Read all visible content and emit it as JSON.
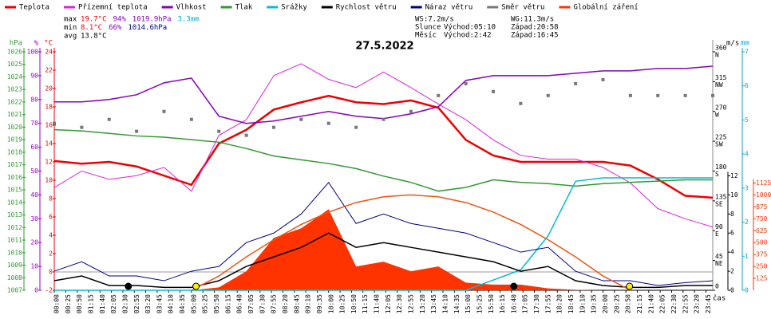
{
  "chart_data": {
    "type": "line",
    "title": "27.5.2022",
    "x_label": "čas",
    "x": [
      0,
      60,
      120,
      180,
      240,
      300,
      360,
      420,
      480,
      540,
      600,
      660,
      720,
      780,
      840,
      900,
      960,
      1020,
      1080,
      1140,
      1200,
      1260,
      1320,
      1380,
      1440
    ],
    "xlim": [
      0,
      1440
    ],
    "xticks": [
      {
        "value": 0,
        "label": "00:00"
      },
      {
        "value": 25,
        "label": "00:25"
      },
      {
        "value": 50,
        "label": "00:50"
      },
      {
        "value": 75,
        "label": "01:15"
      },
      {
        "value": 100,
        "label": "01:40"
      },
      {
        "value": 125,
        "label": "02:05"
      },
      {
        "value": 150,
        "label": "02:30"
      },
      {
        "value": 175,
        "label": "02:55"
      },
      {
        "value": 200,
        "label": "03:20"
      },
      {
        "value": 225,
        "label": "03:45"
      },
      {
        "value": 250,
        "label": "04:10"
      },
      {
        "value": 275,
        "label": "04:35"
      },
      {
        "value": 300,
        "label": "05:00"
      },
      {
        "value": 325,
        "label": "05:25"
      },
      {
        "value": 350,
        "label": "05:50"
      },
      {
        "value": 375,
        "label": "06:15"
      },
      {
        "value": 400,
        "label": "06:40"
      },
      {
        "value": 425,
        "label": "07:05"
      },
      {
        "value": 450,
        "label": "07:30"
      },
      {
        "value": 475,
        "label": "07:55"
      },
      {
        "value": 500,
        "label": "08:20"
      },
      {
        "value": 525,
        "label": "08:45"
      },
      {
        "value": 550,
        "label": "09:10"
      },
      {
        "value": 575,
        "label": "09:35"
      },
      {
        "value": 600,
        "label": "10:00"
      },
      {
        "value": 625,
        "label": "10:25"
      },
      {
        "value": 650,
        "label": "10:50"
      },
      {
        "value": 675,
        "label": "11:15"
      },
      {
        "value": 700,
        "label": "11:40"
      },
      {
        "value": 725,
        "label": "12:05"
      },
      {
        "value": 750,
        "label": "12:30"
      },
      {
        "value": 775,
        "label": "12:55"
      },
      {
        "value": 800,
        "label": "13:20"
      },
      {
        "value": 825,
        "label": "13:45"
      },
      {
        "value": 850,
        "label": "14:10"
      },
      {
        "value": 875,
        "label": "14:35"
      },
      {
        "value": 900,
        "label": "15:00"
      },
      {
        "value": 925,
        "label": "15:25"
      },
      {
        "value": 950,
        "label": "15:50"
      },
      {
        "value": 975,
        "label": "16:15"
      },
      {
        "value": 1000,
        "label": "16:40"
      },
      {
        "value": 1025,
        "label": "17:05"
      },
      {
        "value": 1050,
        "label": "17:30"
      },
      {
        "value": 1075,
        "label": "17:55"
      },
      {
        "value": 1100,
        "label": "18:20"
      },
      {
        "value": 1125,
        "label": "18:45"
      },
      {
        "value": 1150,
        "label": "19:10"
      },
      {
        "value": 1175,
        "label": "19:35"
      },
      {
        "value": 1200,
        "label": "20:00"
      },
      {
        "value": 1225,
        "label": "20:25"
      },
      {
        "value": 1250,
        "label": "20:50"
      },
      {
        "value": 1275,
        "label": "21:15"
      },
      {
        "value": 1300,
        "label": "21:40"
      },
      {
        "value": 1325,
        "label": "22:05"
      },
      {
        "value": 1350,
        "label": "22:30"
      },
      {
        "value": 1375,
        "label": "22:55"
      },
      {
        "value": 1400,
        "label": "23:20"
      },
      {
        "value": 1425,
        "label": "23:45"
      }
    ],
    "axes": {
      "hpa": {
        "label": "hPa",
        "color": "#339933",
        "lim": [
          1007,
          1026
        ],
        "ticks": [
          1007,
          1008,
          1009,
          1010,
          1011,
          1012,
          1013,
          1014,
          1015,
          1016,
          1017,
          1018,
          1019,
          1020,
          1021,
          1022,
          1023,
          1024,
          1025,
          1026
        ]
      },
      "pct": {
        "label": "%",
        "color": "#9900cc",
        "lim": [
          0,
          100
        ],
        "ticks": [
          0,
          10,
          20,
          30,
          40,
          50,
          60,
          70,
          80,
          90,
          100
        ]
      },
      "temp": {
        "label": "°C",
        "color": "#ee0000",
        "lim": [
          -2,
          24
        ],
        "ticks": [
          -2,
          0,
          2,
          4,
          6,
          8,
          10,
          12,
          14,
          16,
          18,
          20,
          22,
          24
        ]
      },
      "dir": {
        "color": "#000000",
        "lim": [
          0,
          360
        ],
        "ticks": [
          {
            "value": 0,
            "label": "0"
          },
          {
            "value": 45,
            "label": "45",
            "compass": "NE"
          },
          {
            "value": 90,
            "label": "90",
            "compass": "E"
          },
          {
            "value": 135,
            "label": "135",
            "compass": "SE"
          },
          {
            "value": 180,
            "label": "180",
            "compass": "S"
          },
          {
            "value": 225,
            "label": "225",
            "compass": "SW"
          },
          {
            "value": 270,
            "label": "270",
            "compass": "W"
          },
          {
            "value": 315,
            "label": "315",
            "compass": "NW"
          },
          {
            "value": 360,
            "label": "360",
            "compass": "N"
          }
        ]
      },
      "ms": {
        "label": "m/s",
        "color": "#000000",
        "lim": [
          0,
          25
        ],
        "ticks": [
          0,
          2,
          4,
          6,
          8,
          10,
          12
        ]
      },
      "mm": {
        "label": "mm",
        "color": "#00aacc",
        "lim": [
          0,
          7
        ],
        "ticks": [
          0,
          1,
          2,
          3,
          4,
          5,
          6,
          7
        ]
      },
      "wm2": {
        "color": "#ff3300",
        "lim": [
          0,
          2500
        ],
        "ticks": [
          125,
          250,
          375,
          500,
          625,
          750,
          875,
          1000,
          1125
        ]
      }
    },
    "series": [
      {
        "name": "Teplota",
        "color": "#ee0000",
        "axis": "temp",
        "kind": "line",
        "width": 2.5,
        "values": [
          12.1,
          11.8,
          12.0,
          11.5,
          10.5,
          9.5,
          14.0,
          15.5,
          17.7,
          18.5,
          19.2,
          18.5,
          18.3,
          18.7,
          17.9,
          14.4,
          12.7,
          12.0,
          12.0,
          12.0,
          12.0,
          11.6,
          10.1,
          8.3,
          8.1
        ]
      },
      {
        "name": "Přízemní teplota",
        "color": "#dd22dd",
        "axis": "temp",
        "kind": "line",
        "width": 1,
        "values": [
          9.2,
          11.0,
          10.1,
          10.5,
          11.4,
          8.8,
          14.9,
          16.6,
          21.4,
          22.7,
          21.0,
          20.1,
          21.8,
          20.1,
          18.3,
          16.6,
          14.4,
          12.7,
          12.3,
          12.3,
          11.4,
          9.7,
          6.9,
          5.8,
          4.9
        ]
      },
      {
        "name": "Vlhkost",
        "color": "#8800bb",
        "axis": "pct",
        "kind": "line",
        "width": 1.5,
        "values": [
          79,
          79,
          80,
          82,
          87,
          89,
          73,
          70,
          71,
          73,
          75,
          73,
          72,
          74,
          77,
          88,
          90,
          90,
          90,
          91,
          92,
          92,
          93,
          93,
          94
        ]
      },
      {
        "name": "Tlak",
        "color": "#339933",
        "axis": "hpa",
        "kind": "line",
        "width": 1.5,
        "values": [
          1019.8,
          1019.7,
          1019.5,
          1019.3,
          1019.2,
          1019.0,
          1018.8,
          1018.3,
          1017.7,
          1017.4,
          1017.1,
          1016.7,
          1016.1,
          1015.6,
          1014.9,
          1015.2,
          1015.8,
          1015.6,
          1015.5,
          1015.3,
          1015.5,
          1015.6,
          1015.7,
          1015.8,
          1015.8
        ]
      },
      {
        "name": "Srážky",
        "color": "#00bcd4",
        "axis": "mm",
        "kind": "line",
        "width": 1.5,
        "values": [
          0,
          0,
          0,
          0,
          0,
          0,
          0,
          0,
          0,
          0,
          0,
          0,
          0,
          0,
          0,
          0,
          0.3,
          0.6,
          1.6,
          3.2,
          3.3,
          3.3,
          3.3,
          3.3,
          3.3
        ]
      },
      {
        "name": "Rychlost větru",
        "color": "#000000",
        "axis": "ms",
        "kind": "line",
        "width": 1.5,
        "values": [
          1,
          1.5,
          0.5,
          0.5,
          0.3,
          0.3,
          1,
          2.5,
          3.5,
          4.5,
          6,
          4.5,
          5,
          4.5,
          4,
          3.5,
          3,
          2,
          2.5,
          1,
          0.5,
          0.3,
          0.3,
          0.5,
          0.5
        ]
      },
      {
        "name": "Náraz větru",
        "color": "#000080",
        "axis": "ms",
        "kind": "line",
        "width": 1,
        "values": [
          2,
          3,
          1.5,
          1.5,
          1,
          2,
          2.5,
          5,
          6,
          8,
          11.3,
          7,
          8,
          7,
          6.5,
          6,
          5,
          4,
          4.5,
          2,
          1,
          1,
          0.5,
          0.8,
          1
        ]
      },
      {
        "name": "Směr větru",
        "color": "#777777",
        "axis": "dir",
        "kind": "scatter",
        "values": [
          252,
          246,
          258,
          240,
          270,
          258,
          240,
          234,
          246,
          258,
          252,
          246,
          258,
          270,
          294,
          312,
          300,
          282,
          294,
          312,
          318,
          294,
          294,
          294,
          294
        ]
      },
      {
        "name": "Globální záření",
        "color": "#ff3300",
        "axis": "wm2",
        "kind": "area",
        "values": [
          0,
          0,
          0,
          0,
          0,
          0,
          30,
          200,
          550,
          650,
          850,
          250,
          300,
          200,
          250,
          80,
          60,
          60,
          20,
          5,
          0,
          0,
          0,
          0,
          0
        ]
      },
      {
        "color": "#ee5511",
        "axis": "wm2",
        "kind": "line",
        "width": 1.5,
        "values": [
          null,
          null,
          null,
          null,
          null,
          0,
          150,
          350,
          530,
          690,
          820,
          920,
          980,
          1000,
          980,
          920,
          820,
          690,
          530,
          350,
          150,
          0,
          null,
          null,
          null
        ]
      }
    ],
    "events": [
      {
        "x": 162,
        "color": "#000000"
      },
      {
        "x": 310,
        "color": "#ffee00"
      },
      {
        "x": 1005,
        "color": "#000000"
      },
      {
        "x": 1258,
        "color": "#ffee00"
      }
    ],
    "stats": [
      {
        "label": "max",
        "items": [
          {
            "text": "19.7°C",
            "color": "#ee0000"
          },
          {
            "text": "94%",
            "color": "#8800bb"
          },
          {
            "text": "1019.9hPa",
            "color": "#8800bb"
          },
          {
            "text": "3.3mm",
            "color": "#00aacc"
          }
        ]
      },
      {
        "label": "min",
        "items": [
          {
            "text": "8.1°C",
            "color": "#ee0000"
          },
          {
            "text": "66%",
            "color": "#8800bb"
          },
          {
            "text": "1014.6hPa",
            "color": "#000080"
          }
        ]
      },
      {
        "label": "avg",
        "items": [
          {
            "text": "13.8°C",
            "color": "#000000"
          }
        ]
      }
    ],
    "info": {
      "ws": "WS:7.2m/s",
      "wg": "WG:11.3m/s",
      "sun": "Slunce",
      "sunrise": "Východ:05:10",
      "sunset": "Západ:20:58",
      "moon": "Měsíc",
      "moonrise": "Východ:2:42",
      "moonset": "Západ:16:45"
    }
  }
}
